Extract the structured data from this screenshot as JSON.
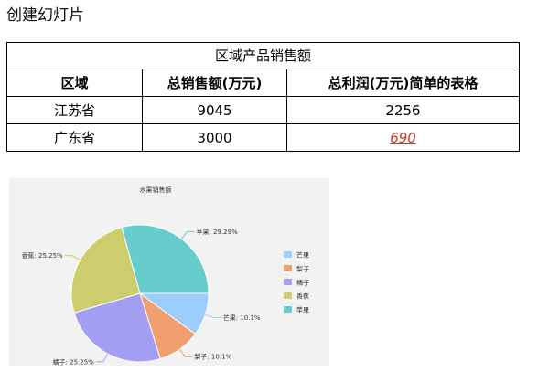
{
  "page": {
    "title": "创建幻灯片"
  },
  "table": {
    "caption": "区域产品销售额",
    "headers": [
      "区域",
      "总销售额(万元)",
      "总利润(万元)简单的表格"
    ],
    "rows": [
      [
        "江苏省",
        "9045",
        "2256"
      ],
      [
        "广东省",
        "3000",
        "690"
      ]
    ]
  },
  "chart_data": {
    "type": "pie",
    "title": "水果销售额",
    "slices": [
      {
        "name": "芒果",
        "percent": 10.1,
        "label": "芒果: 10.1%",
        "color": "#9ccdfc"
      },
      {
        "name": "梨子",
        "percent": 10.1,
        "label": "梨子: 10.1%",
        "color": "#f0a06f"
      },
      {
        "name": "橘子",
        "percent": 25.25,
        "label": "橘子: 25.25%",
        "color": "#a49ef3"
      },
      {
        "name": "香蕉",
        "percent": 25.25,
        "label": "香蕉: 25.25%",
        "color": "#cccd6c"
      },
      {
        "name": "苹果",
        "percent": 29.29,
        "label": "苹果: 29.29%",
        "color": "#66cccc"
      }
    ],
    "legend": {
      "placement": "right",
      "items": [
        "芒果",
        "梨子",
        "橘子",
        "香蕉",
        "苹果"
      ]
    }
  }
}
